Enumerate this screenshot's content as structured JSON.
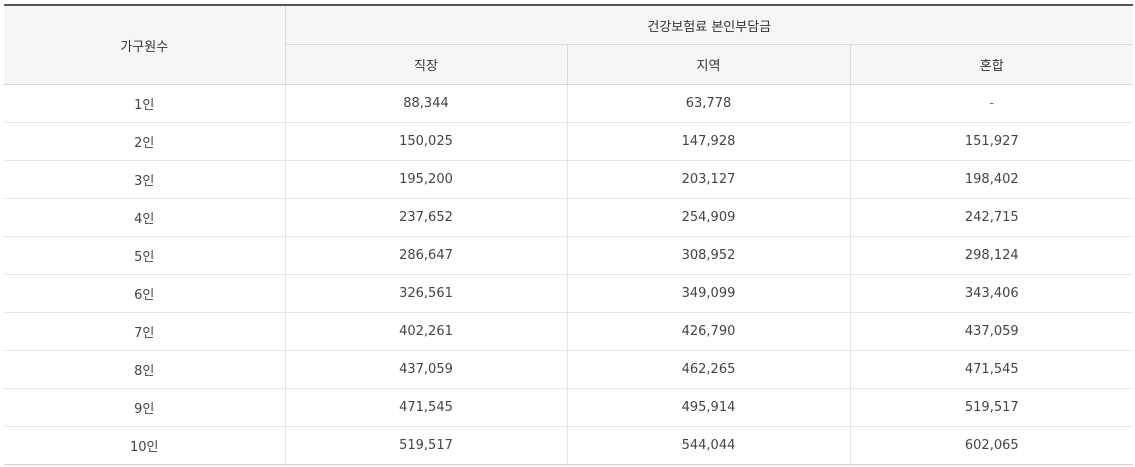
{
  "table": {
    "corner_header": "가구원수",
    "group_header": "건강보험료 본인부담금",
    "sub_headers": [
      "직장",
      "지역",
      "혼합"
    ],
    "rows": [
      {
        "household": "1인",
        "workplace": "88,344",
        "regional": "63,778",
        "mixed": "-"
      },
      {
        "household": "2인",
        "workplace": "150,025",
        "regional": "147,928",
        "mixed": "151,927"
      },
      {
        "household": "3인",
        "workplace": "195,200",
        "regional": "203,127",
        "mixed": "198,402"
      },
      {
        "household": "4인",
        "workplace": "237,652",
        "regional": "254,909",
        "mixed": "242,715"
      },
      {
        "household": "5인",
        "workplace": "286,647",
        "regional": "308,952",
        "mixed": "298,124"
      },
      {
        "household": "6인",
        "workplace": "326,561",
        "regional": "349,099",
        "mixed": "343,406"
      },
      {
        "household": "7인",
        "workplace": "402,261",
        "regional": "426,790",
        "mixed": "437,059"
      },
      {
        "household": "8인",
        "workplace": "437,059",
        "regional": "462,265",
        "mixed": "471,545"
      },
      {
        "household": "9인",
        "workplace": "471,545",
        "regional": "495,914",
        "mixed": "519,517"
      },
      {
        "household": "10인",
        "workplace": "519,517",
        "regional": "544,044",
        "mixed": "602,065"
      }
    ]
  }
}
